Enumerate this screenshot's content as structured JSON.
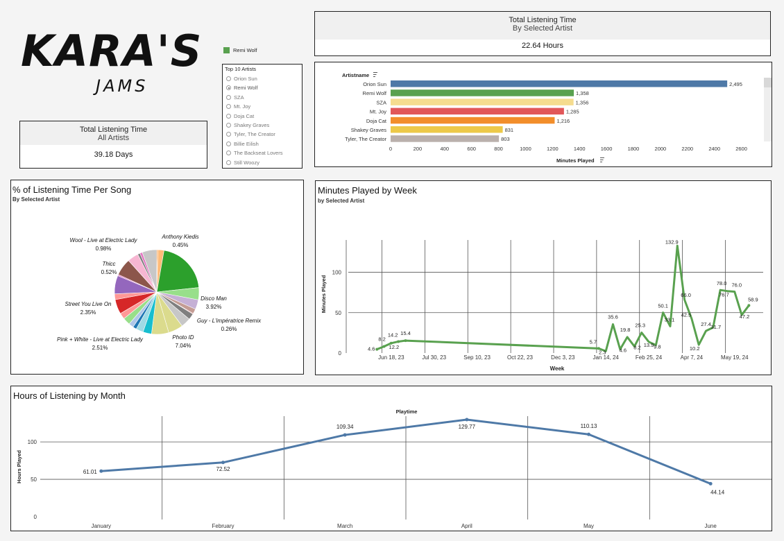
{
  "logo": {
    "main": "KARA'S",
    "sub": "JAMS"
  },
  "kpi_all": {
    "title": "Total Listening Time",
    "subtitle": "All Artists",
    "value": "39.18 Days"
  },
  "kpi_selected": {
    "title": "Total Listening Time",
    "subtitle": "By Selected Artist",
    "value": "22.64 Hours"
  },
  "legend": {
    "label": "Remi Wolf",
    "color": "#59a14f"
  },
  "filter": {
    "title": "Top 10 Artists",
    "selected": "Remi Wolf",
    "options": [
      "Orion Sun",
      "Remi Wolf",
      "SZA",
      "Mt. Joy",
      "Doja Cat",
      "Shakey Graves",
      "Tyler, The Creator",
      "Billie Eilish",
      "The Backseat Lovers",
      "Still Woozy"
    ]
  },
  "bar_chart_panel": {
    "y_header": "Artistname",
    "x_header": "Minutes Played"
  },
  "pie_panel": {
    "title": "% of Listening Time Per Song",
    "subtitle": "By Selected Artist"
  },
  "week_panel": {
    "title": "Minutes Played by Week",
    "subtitle": "by Selected Artist"
  },
  "month_panel": {
    "title": "Hours of Listening by Month"
  },
  "chart_data": [
    {
      "type": "bar",
      "orientation": "horizontal",
      "categories": [
        "Orion Sun",
        "Remi Wolf",
        "SZA",
        "Mt. Joy",
        "Doja Cat",
        "Shakey Graves",
        "Tyler, The Creator"
      ],
      "values": [
        2495,
        1358,
        1356,
        1285,
        1216,
        831,
        803
      ],
      "value_labels": [
        "2,495",
        "1,358",
        "1,356",
        "1,285",
        "1,216",
        "831",
        "803"
      ],
      "colors": [
        "#4e79a7",
        "#59a14f",
        "#f5dc8f",
        "#e15759",
        "#f28e2b",
        "#edc948",
        "#bab0ac"
      ],
      "xlabel": "Minutes Played",
      "ylabel": "Artistname",
      "xlim": [
        0,
        2700
      ],
      "xticks": [
        0,
        200,
        400,
        600,
        800,
        1000,
        1200,
        1400,
        1600,
        1800,
        2000,
        2200,
        2400,
        2600
      ]
    },
    {
      "type": "pie",
      "slices": [
        {
          "label": "Anthony Kiedis",
          "pct": "0.45%",
          "value": 0.45,
          "color": "#ff7f0e"
        },
        {
          "label": "",
          "value": 2.5,
          "color": "#ffbb78"
        },
        {
          "label": "",
          "value": 22.0,
          "color": "#2ca02c"
        },
        {
          "label": "",
          "value": 5.0,
          "color": "#98df8a"
        },
        {
          "label": "Disco Man",
          "pct": "3.92%",
          "value": 3.92,
          "color": "#c5b0d5"
        },
        {
          "label": "",
          "value": 2.0,
          "color": "#c49c94"
        },
        {
          "label": "Guy - L'impératrice Remix",
          "pct": "0.26%",
          "value": 0.26,
          "color": "#d62728"
        },
        {
          "label": "",
          "value": 2.5,
          "color": "#7f7f7f"
        },
        {
          "label": "",
          "value": 4.0,
          "color": "#c7c7c7"
        },
        {
          "label": "",
          "value": 6.0,
          "color": "#dbdb8d"
        },
        {
          "label": "Photo ID",
          "pct": "7.04%",
          "value": 7.04,
          "color": "#dbdb8d"
        },
        {
          "label": "",
          "value": 3.5,
          "color": "#17becf"
        },
        {
          "label": "",
          "value": 3.0,
          "color": "#9edae5"
        },
        {
          "label": "",
          "value": 1.5,
          "color": "#1f77b4"
        },
        {
          "label": "",
          "value": 2.0,
          "color": "#aec7e8"
        },
        {
          "label": "",
          "value": 3.0,
          "color": "#98df8a"
        },
        {
          "label": "Pink + White - Live at Electric Lady",
          "pct": "2.51%",
          "value": 2.51,
          "color": "#ff9896"
        },
        {
          "label": "",
          "value": 6.0,
          "color": "#d62728"
        },
        {
          "label": "Street You Live On",
          "pct": "2.35%",
          "value": 2.35,
          "color": "#ff9896"
        },
        {
          "label": "",
          "value": 7.5,
          "color": "#9467bd"
        },
        {
          "label": "Thicc",
          "pct": "0.52%",
          "value": 0.52,
          "color": "#e377c2"
        },
        {
          "label": "",
          "value": 7.0,
          "color": "#8c564b"
        },
        {
          "label": "",
          "value": 4.5,
          "color": "#f7b6d2"
        },
        {
          "label": "Wool - Live at Electric Lady",
          "pct": "0.98%",
          "value": 0.98,
          "color": "#7f7f7f"
        },
        {
          "label": "",
          "value": 1.0,
          "color": "#e377c2"
        },
        {
          "label": "",
          "value": 6.0,
          "color": "#c7c7c7"
        }
      ]
    },
    {
      "type": "line",
      "title": "Minutes Played by Week",
      "xlabel": "Week",
      "ylabel": "Minutes Played",
      "x_tick_labels": [
        "Jun 18, 23",
        "Jul 30, 23",
        "Sep 10, 23",
        "Oct 22, 23",
        "Dec 3, 23",
        "Jan 14, 24",
        "Feb 25, 24",
        "Apr 7, 24",
        "May 19, 24"
      ],
      "y_ticks": [
        0,
        50,
        100
      ],
      "ylim": [
        0,
        140
      ],
      "color": "#59a14f",
      "points": [
        {
          "x": "2023-06-04",
          "y": 4.6,
          "label": "4.6"
        },
        {
          "x": "2023-06-11",
          "y": 8.2,
          "label": "8.2"
        },
        {
          "x": "2023-06-18",
          "y": 12.2,
          "label": "12.2"
        },
        {
          "x": "2023-06-25",
          "y": 14.2,
          "label": "14.2"
        },
        {
          "x": "2023-07-02",
          "y": 15.4,
          "label": "15.4"
        },
        {
          "x": "2024-01-07",
          "y": 5.7,
          "label": "5.7"
        },
        {
          "x": "2024-01-14",
          "y": 2.3,
          "label": "2.3"
        },
        {
          "x": "2024-01-21",
          "y": 35.6,
          "label": "35.6"
        },
        {
          "x": "2024-01-28",
          "y": 4.6,
          "label": "4.6"
        },
        {
          "x": "2024-02-04",
          "y": 19.8,
          "label": "19.8"
        },
        {
          "x": "2024-02-11",
          "y": 8.2,
          "label": "8.2"
        },
        {
          "x": "2024-02-18",
          "y": 25.3,
          "label": "25.3"
        },
        {
          "x": "2024-02-25",
          "y": 13.9,
          "label": "13.9"
        },
        {
          "x": "2024-03-03",
          "y": 9.8,
          "label": "9.8"
        },
        {
          "x": "2024-03-10",
          "y": 50.1,
          "label": "50.1"
        },
        {
          "x": "2024-03-17",
          "y": 33.1,
          "label": "33.1"
        },
        {
          "x": "2024-03-24",
          "y": 132.9,
          "label": "132.9"
        },
        {
          "x": "2024-03-31",
          "y": 66.0,
          "label": "66.0"
        },
        {
          "x": "2024-04-07",
          "y": 42.5,
          "label": "42.5"
        },
        {
          "x": "2024-04-14",
          "y": 10.2,
          "label": "10.2"
        },
        {
          "x": "2024-04-21",
          "y": 27.4,
          "label": "27.4"
        },
        {
          "x": "2024-04-28",
          "y": 31.7,
          "label": "31.7"
        },
        {
          "x": "2024-05-05",
          "y": 78.0,
          "label": "78.0"
        },
        {
          "x": "2024-05-12",
          "y": 76.7,
          "label": "76.7"
        },
        {
          "x": "2024-05-19",
          "y": 76.0,
          "label": "76.0"
        },
        {
          "x": "2024-05-26",
          "y": 47.2,
          "label": "47.2"
        },
        {
          "x": "2024-06-02",
          "y": 58.9,
          "label": "58.9"
        }
      ]
    },
    {
      "type": "line",
      "title": "Playtime",
      "xlabel": "",
      "ylabel": "Hours Played",
      "categories": [
        "January",
        "February",
        "March",
        "April",
        "May",
        "June"
      ],
      "values": [
        61.01,
        72.52,
        109.34,
        129.77,
        110.13,
        44.14
      ],
      "value_labels": [
        "61.01",
        "72.52",
        "109.34",
        "129.77",
        "110.13",
        "44.14"
      ],
      "y_ticks": [
        0,
        50,
        100
      ],
      "ylim": [
        0,
        140
      ],
      "color": "#4e79a7"
    }
  ]
}
